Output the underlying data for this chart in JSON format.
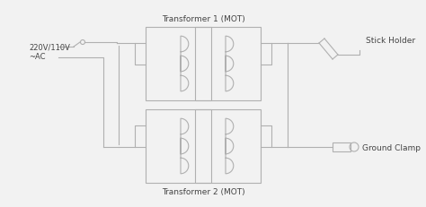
{
  "bg_color": "#f2f2f2",
  "line_color": "#b0b0b0",
  "text_color": "#444444",
  "label_ac": "220V/110V\n~AC",
  "label_t1": "Transformer 1 (MOT)",
  "label_t2": "Transformer 2 (MOT)",
  "label_stick": "Stick Holder",
  "label_ground": "Ground Clamp",
  "figsize": [
    4.74,
    2.31
  ],
  "dpi": 100
}
